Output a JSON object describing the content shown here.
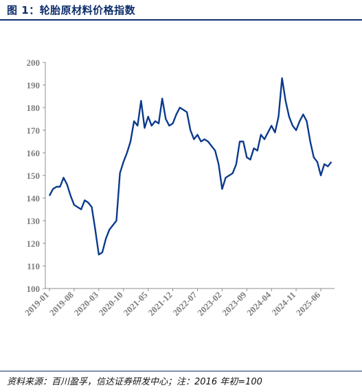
{
  "header": {
    "title": "图 1：轮胎原材料价格指数"
  },
  "footer": {
    "source": "资料来源：百川盈孚，信达证券研发中心；注：2016 年初=100"
  },
  "colors": {
    "line": "#0a3a8c",
    "title": "#0c2d6b",
    "tick": "#7f7f7f"
  },
  "chart_data": {
    "type": "line",
    "title": "轮胎原材料价格指数",
    "ylim": [
      100,
      200
    ],
    "yticks": [
      100,
      110,
      120,
      130,
      140,
      150,
      160,
      170,
      180,
      190,
      200
    ],
    "xticks": [
      "2019-01",
      "2019-08",
      "2020-03",
      "2020-10",
      "2021-05",
      "2021-12",
      "2022-07",
      "2023-02",
      "2023-09",
      "2024-04",
      "2024-11",
      "2025-06"
    ],
    "series": [
      {
        "points": [
          [
            "2019-01",
            141
          ],
          [
            "2019-02",
            144
          ],
          [
            "2019-03",
            145
          ],
          [
            "2019-04",
            145
          ],
          [
            "2019-05",
            149
          ],
          [
            "2019-06",
            146
          ],
          [
            "2019-07",
            141
          ],
          [
            "2019-08",
            137
          ],
          [
            "2019-09",
            136
          ],
          [
            "2019-10",
            135
          ],
          [
            "2019-11",
            139
          ],
          [
            "2019-12",
            138
          ],
          [
            "2020-01",
            136
          ],
          [
            "2020-02",
            126
          ],
          [
            "2020-03",
            115
          ],
          [
            "2020-04",
            116
          ],
          [
            "2020-05",
            122
          ],
          [
            "2020-06",
            126
          ],
          [
            "2020-07",
            128
          ],
          [
            "2020-08",
            130
          ],
          [
            "2020-09",
            151
          ],
          [
            "2020-10",
            156
          ],
          [
            "2020-11",
            160
          ],
          [
            "2020-12",
            165
          ],
          [
            "2021-01",
            174
          ],
          [
            "2021-02",
            172
          ],
          [
            "2021-03",
            183
          ],
          [
            "2021-04",
            171
          ],
          [
            "2021-05",
            176
          ],
          [
            "2021-06",
            172
          ],
          [
            "2021-07",
            174
          ],
          [
            "2021-08",
            173
          ],
          [
            "2021-09",
            184
          ],
          [
            "2021-10",
            175
          ],
          [
            "2021-11",
            172
          ],
          [
            "2021-12",
            173
          ],
          [
            "2022-01",
            177
          ],
          [
            "2022-02",
            180
          ],
          [
            "2022-03",
            179
          ],
          [
            "2022-04",
            178
          ],
          [
            "2022-05",
            170
          ],
          [
            "2022-06",
            166
          ],
          [
            "2022-07",
            168
          ],
          [
            "2022-08",
            165
          ],
          [
            "2022-09",
            166
          ],
          [
            "2022-10",
            165
          ],
          [
            "2022-11",
            163
          ],
          [
            "2022-12",
            161
          ],
          [
            "2023-01",
            155
          ],
          [
            "2023-02",
            144
          ],
          [
            "2023-03",
            149
          ],
          [
            "2023-04",
            150
          ],
          [
            "2023-05",
            151
          ],
          [
            "2023-06",
            155
          ],
          [
            "2023-07",
            165
          ],
          [
            "2023-08",
            165
          ],
          [
            "2023-09",
            158
          ],
          [
            "2023-10",
            157
          ],
          [
            "2023-11",
            162
          ],
          [
            "2023-12",
            161
          ],
          [
            "2024-01",
            168
          ],
          [
            "2024-02",
            166
          ],
          [
            "2024-03",
            169
          ],
          [
            "2024-04",
            172
          ],
          [
            "2024-05",
            169
          ],
          [
            "2024-06",
            176
          ],
          [
            "2024-07",
            193
          ],
          [
            "2024-08",
            183
          ],
          [
            "2024-09",
            176
          ],
          [
            "2024-10",
            172
          ],
          [
            "2024-11",
            170
          ],
          [
            "2024-12",
            174
          ],
          [
            "2025-01",
            177
          ],
          [
            "2025-02",
            174
          ],
          [
            "2025-03",
            165
          ],
          [
            "2025-04",
            158
          ],
          [
            "2025-05",
            156
          ],
          [
            "2025-06",
            150
          ],
          [
            "2025-07",
            155
          ],
          [
            "2025-08",
            154
          ],
          [
            "2025-09",
            156
          ]
        ]
      }
    ]
  }
}
